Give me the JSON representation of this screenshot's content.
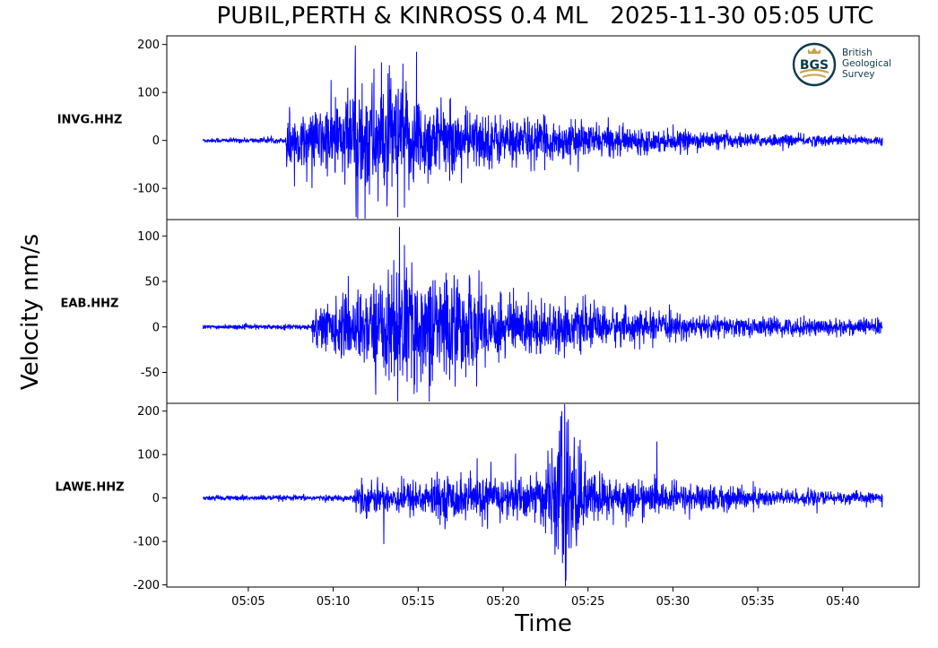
{
  "title": {
    "event": "PUBIL,PERTH & KINROSS 0.4 ML",
    "datetime": "2025-11-30 05:05 UTC"
  },
  "logo": {
    "abbr": "BGS",
    "line1": "British",
    "line2": "Geological",
    "line3": "Survey"
  },
  "chart_data": {
    "type": "line",
    "xlabel": "Time",
    "ylabel": "Velocity nm/s",
    "x_ticks": [
      "05:05",
      "05:10",
      "05:15",
      "05:20",
      "05:25",
      "05:30",
      "05:35",
      "05:40"
    ],
    "x_range_minutes": [
      "05:00:12",
      "05:44:30"
    ],
    "trace_start": "05:02:20",
    "trace_end": "05:42:20",
    "line_color": "#0000ff",
    "grid": false,
    "series": [
      {
        "name": "INVG.HHZ",
        "ylim": [
          -165,
          218
        ],
        "y_ticks": [
          200,
          100,
          0,
          -100
        ],
        "y_tick_labels": [
          "200",
          "100",
          "0",
          "-100"
        ],
        "onset": "05:07:15",
        "envelope": [
          [
            2.3,
            4
          ],
          [
            7.2,
            5
          ],
          [
            7.25,
            70
          ],
          [
            8,
            40
          ],
          [
            10.5,
            80
          ],
          [
            11.5,
            120
          ],
          [
            13,
            110
          ],
          [
            14.5,
            90
          ],
          [
            17,
            60
          ],
          [
            20,
            45
          ],
          [
            25,
            30
          ],
          [
            30,
            18
          ],
          [
            35,
            12
          ],
          [
            42.3,
            8
          ]
        ],
        "spikes": [
          [
            11.3,
            198
          ],
          [
            11.35,
            -160
          ],
          [
            13.4,
            130
          ],
          [
            13.8,
            -160
          ],
          [
            14.1,
            160
          ],
          [
            14.9,
            185
          ],
          [
            14.2,
            -140
          ]
        ]
      },
      {
        "name": "EAB.HHZ",
        "ylim": [
          -84,
          118
        ],
        "y_ticks": [
          100,
          50,
          0,
          -50
        ],
        "y_tick_labels": [
          "100",
          "50",
          "0",
          "-50"
        ],
        "onset": "05:08:50",
        "envelope": [
          [
            2.3,
            2
          ],
          [
            8.7,
            2.5
          ],
          [
            8.8,
            20
          ],
          [
            10,
            25
          ],
          [
            12,
            38
          ],
          [
            13.8,
            60
          ],
          [
            15,
            50
          ],
          [
            16.5,
            55
          ],
          [
            18,
            45
          ],
          [
            20,
            30
          ],
          [
            25,
            20
          ],
          [
            30,
            12
          ],
          [
            35,
            9
          ],
          [
            42.3,
            8
          ]
        ],
        "spikes": [
          [
            13.9,
            110
          ],
          [
            13.8,
            -82
          ],
          [
            14.2,
            90
          ]
        ]
      },
      {
        "name": "LAWE.HHZ",
        "ylim": [
          -205,
          218
        ],
        "y_ticks": [
          200,
          100,
          0,
          -100,
          -200
        ],
        "y_tick_labels": [
          "200",
          "100",
          "0",
          "-100",
          "-200"
        ],
        "onset": "05:11:15",
        "envelope": [
          [
            2.3,
            5
          ],
          [
            11.2,
            6
          ],
          [
            11.3,
            35
          ],
          [
            13,
            30
          ],
          [
            17,
            45
          ],
          [
            20,
            42
          ],
          [
            22,
            45
          ],
          [
            23,
            90
          ],
          [
            23.6,
            180
          ],
          [
            24.3,
            110
          ],
          [
            25,
            55
          ],
          [
            28,
            35
          ],
          [
            33,
            25
          ],
          [
            38,
            15
          ],
          [
            42.3,
            10
          ]
        ],
        "spikes": [
          [
            23.45,
            200
          ],
          [
            23.5,
            -150
          ],
          [
            23.7,
            -190
          ],
          [
            23.75,
            175
          ]
        ]
      }
    ]
  }
}
